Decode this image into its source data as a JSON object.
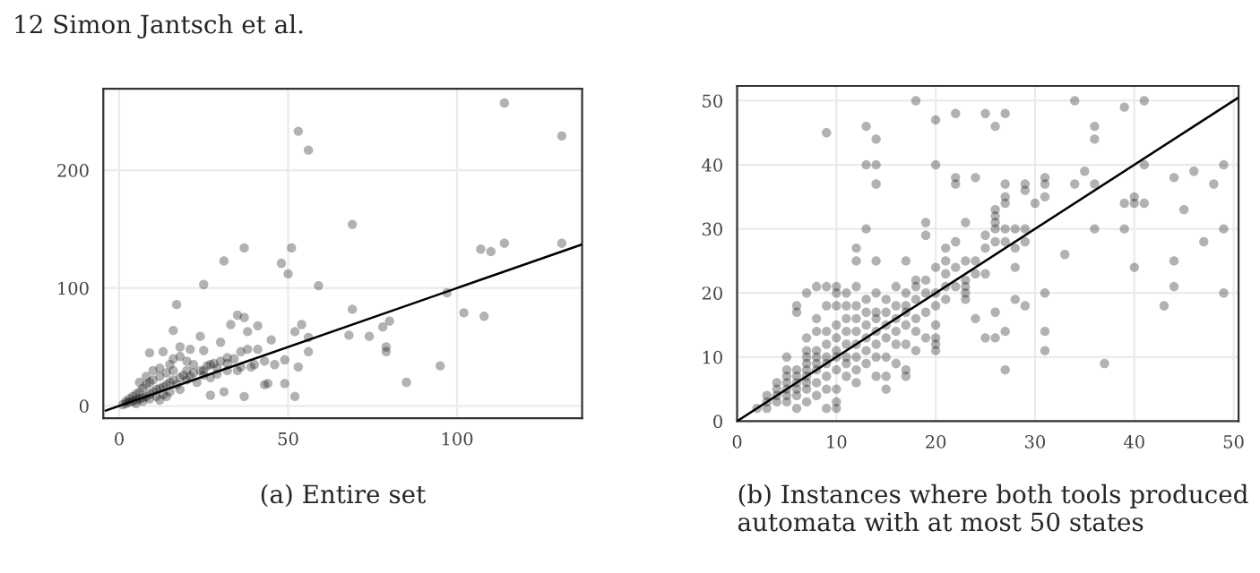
{
  "chart_data": [
    {
      "type": "scatter",
      "annotations": [
        "12 Simon Jantsch et al.",
        "(a) Entire set"
      ],
      "xlim": [
        -4.7,
        137
      ],
      "ylim": [
        -10.5,
        269
      ],
      "xticks": [
        0,
        50,
        100
      ],
      "yticks": [
        0,
        100,
        200
      ],
      "grid": true,
      "series": [
        {
          "color": "#000000",
          "marker": "circle",
          "x": [
            53,
            56,
            114,
            131,
            69,
            107,
            110,
            114,
            131,
            31,
            37,
            51,
            48,
            50,
            59,
            25,
            17,
            16,
            69,
            97,
            102,
            108,
            95,
            85,
            80,
            78,
            79,
            79,
            74,
            68,
            52,
            37,
            52,
            54,
            56,
            56,
            53,
            49,
            49,
            44,
            43,
            41,
            38,
            35,
            37,
            33,
            45,
            41,
            40,
            38,
            36,
            32,
            30,
            27,
            27,
            31,
            24,
            21,
            18,
            9,
            13,
            22,
            25,
            29,
            32,
            36,
            39,
            43,
            46,
            25,
            1,
            2,
            2,
            3,
            3,
            4,
            4,
            5,
            5,
            6,
            6,
            7,
            7,
            8,
            8,
            9,
            9,
            10,
            10,
            11,
            11,
            12,
            12,
            13,
            13,
            14,
            14,
            15,
            15,
            16,
            16,
            17,
            18,
            18,
            19,
            20,
            20,
            21,
            22,
            23,
            24,
            25,
            26,
            27,
            28,
            29,
            30,
            32,
            34,
            35,
            6,
            8,
            10,
            12,
            15,
            16,
            18,
            20,
            5,
            7,
            9,
            12,
            14
          ],
          "values": [
            233,
            217,
            257,
            229,
            154,
            133,
            131,
            138,
            138,
            123,
            134,
            134,
            121,
            112,
            102,
            103,
            86,
            64,
            82,
            96,
            79,
            76,
            34,
            20,
            72,
            67,
            50,
            46,
            59,
            60,
            8,
            8,
            63,
            69,
            58,
            46,
            33,
            39,
            19,
            19,
            18,
            68,
            63,
            77,
            75,
            69,
            56,
            48,
            35,
            48,
            46,
            41,
            54,
            35,
            9,
            12,
            59,
            48,
            50,
            45,
            46,
            35,
            30,
            27,
            30,
            33,
            33,
            38,
            35,
            47,
            1,
            2,
            4,
            3,
            6,
            4,
            8,
            5,
            10,
            6,
            12,
            7,
            15,
            8,
            18,
            10,
            20,
            12,
            22,
            14,
            8,
            15,
            25,
            16,
            10,
            18,
            28,
            20,
            12,
            22,
            30,
            18,
            24,
            14,
            26,
            22,
            30,
            25,
            28,
            20,
            30,
            26,
            34,
            24,
            36,
            32,
            38,
            36,
            40,
            30,
            20,
            25,
            30,
            32,
            35,
            40,
            42,
            38,
            2,
            4,
            6,
            5,
            8
          ]
        },
        {
          "type": "line",
          "color": "#000000",
          "x": [
            -4,
            137
          ],
          "values": [
            -4,
            137
          ]
        }
      ]
    },
    {
      "type": "scatter",
      "annotations": [
        "(b) Instances where both tools produced automata with at most 50 states"
      ],
      "xlim": [
        0,
        50.5
      ],
      "ylim": [
        0,
        52.3
      ],
      "xticks": [
        0,
        10,
        20,
        30,
        40,
        50
      ],
      "yticks": [
        0,
        10,
        20,
        30,
        40,
        50
      ],
      "grid": true,
      "series": [
        {
          "color": "#000000",
          "marker": "circle",
          "x": [
            9,
            13,
            14,
            13,
            14,
            14,
            13,
            18,
            20,
            22,
            25,
            26,
            27,
            20,
            22,
            22,
            24,
            26,
            26,
            26,
            26,
            27,
            27,
            27,
            29,
            29,
            30,
            31,
            31,
            31,
            34,
            35,
            34,
            36,
            36,
            36,
            36,
            39,
            41,
            39,
            40,
            40,
            41,
            41,
            44,
            46,
            45,
            48,
            49,
            49,
            47,
            44,
            44,
            43,
            49,
            39,
            40,
            33,
            37,
            31,
            31,
            31,
            28,
            28,
            29,
            27,
            27,
            25,
            26,
            26,
            24,
            25,
            24,
            23,
            23,
            23,
            22,
            21,
            21,
            21,
            20,
            20,
            20,
            20,
            19,
            19,
            18,
            18,
            17,
            17,
            17,
            16,
            15,
            15,
            14,
            14,
            12,
            12,
            12,
            10,
            10,
            9,
            6,
            6,
            7,
            8,
            9,
            10,
            10,
            11,
            2,
            3,
            3,
            3,
            4,
            4,
            4,
            4,
            5,
            5,
            5,
            5,
            5,
            5,
            5,
            6,
            6,
            6,
            6,
            6,
            6,
            7,
            7,
            7,
            7,
            7,
            7,
            7,
            7,
            7,
            8,
            8,
            8,
            8,
            8,
            8,
            8,
            8,
            9,
            9,
            9,
            9,
            9,
            9,
            9,
            10,
            10,
            10,
            10,
            10,
            10,
            10,
            11,
            11,
            11,
            11,
            11,
            11,
            11,
            12,
            12,
            12,
            12,
            12,
            12,
            12,
            13,
            13,
            13,
            13,
            13,
            13,
            14,
            14,
            14,
            14,
            14,
            14,
            15,
            15,
            15,
            15,
            15,
            16,
            16,
            16,
            16,
            16,
            17,
            17,
            17,
            17,
            17,
            18,
            18,
            18,
            18,
            19,
            19,
            19,
            19,
            20,
            20,
            20,
            21,
            21,
            22,
            22,
            23,
            23,
            23,
            24,
            25,
            25,
            26,
            27,
            27,
            28,
            28,
            29,
            29
          ],
          "values": [
            45,
            46,
            44,
            40,
            40,
            37,
            30,
            50,
            47,
            48,
            48,
            46,
            48,
            40,
            38,
            37,
            38,
            33,
            32,
            31,
            30,
            37,
            35,
            34,
            37,
            36,
            34,
            38,
            37,
            35,
            50,
            39,
            37,
            46,
            44,
            37,
            30,
            49,
            50,
            34,
            35,
            34,
            34,
            40,
            38,
            39,
            33,
            37,
            40,
            30,
            28,
            25,
            21,
            18,
            20,
            30,
            24,
            26,
            9,
            20,
            14,
            11,
            24,
            19,
            18,
            14,
            8,
            13,
            13,
            17,
            16,
            23,
            25,
            31,
            20,
            22,
            28,
            27,
            25,
            23,
            18,
            13,
            12,
            11,
            29,
            31,
            22,
            14,
            25,
            7,
            8,
            12,
            5,
            7,
            7,
            25,
            27,
            25,
            6,
            2,
            3,
            2,
            18,
            17,
            20,
            21,
            21,
            21,
            20,
            20,
            2,
            2,
            3,
            4,
            3,
            4,
            5,
            6,
            3,
            4,
            5,
            6,
            7,
            8,
            10,
            4,
            5,
            6,
            7,
            8,
            2,
            3,
            5,
            6,
            7,
            8,
            9,
            10,
            11,
            13,
            4,
            6,
            8,
            9,
            10,
            11,
            14,
            16,
            5,
            7,
            9,
            10,
            12,
            14,
            18,
            5,
            8,
            10,
            11,
            13,
            15,
            18,
            7,
            9,
            10,
            12,
            14,
            16,
            18,
            8,
            10,
            12,
            14,
            16,
            18,
            21,
            9,
            11,
            13,
            15,
            17,
            19,
            10,
            12,
            14,
            16,
            17,
            20,
            10,
            13,
            15,
            17,
            19,
            9,
            14,
            16,
            18,
            21,
            12,
            15,
            17,
            18,
            20,
            11,
            16,
            19,
            21,
            13,
            17,
            20,
            22,
            15,
            20,
            24,
            19,
            21,
            21,
            24,
            19,
            21,
            25,
            23,
            29,
            27,
            28,
            28,
            30,
            27,
            30,
            28,
            30
          ]
        },
        {
          "type": "line",
          "color": "#000000",
          "x": [
            0,
            50.5
          ],
          "values": [
            0,
            50.5
          ]
        }
      ]
    }
  ]
}
